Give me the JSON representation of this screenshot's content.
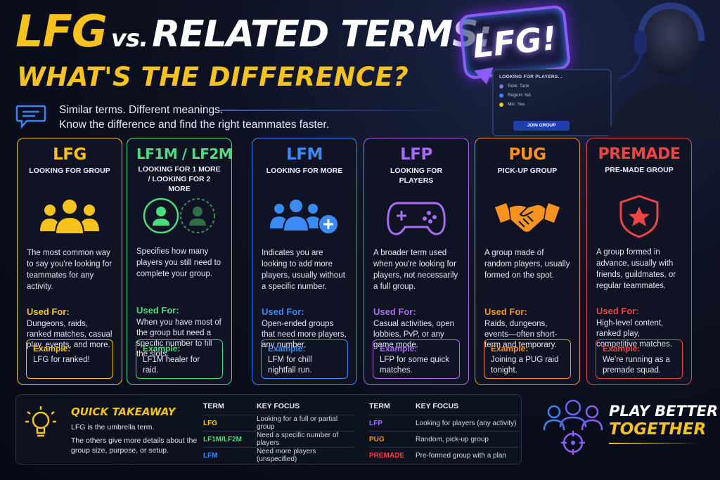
{
  "header": {
    "title_lfg": "LFG",
    "title_vs": "vs.",
    "title_rest": "RELATED TERMS:",
    "title_line2": "WHAT'S THE DIFFERENCE?",
    "subtitle_1": "Similar terms. Different meanings.",
    "subtitle_2": "Know the difference and find the right teammates faster."
  },
  "hero": {
    "bubble_text": "LFG!",
    "screen_title": "LOOKING FOR PLAYERS...",
    "screen_rows": [
      "Role: Tank",
      "Region: NA",
      "Mic: Yes"
    ],
    "screen_button": "JOIN GROUP"
  },
  "cards": [
    {
      "term": "LFG",
      "subtitle": "LOOKING FOR GROUP",
      "icon": "group-icon",
      "color": "#f6c21c",
      "description": "The most common way to say you're looking for teammates for any activity.",
      "used_for_label": "Used For:",
      "used_for": "Dungeons, raids, ranked matches, casual play, events, and more.",
      "example_label": "Example:",
      "example": "LFG for ranked!"
    },
    {
      "term": "LF1M / LF2M",
      "subtitle": "LOOKING FOR 1 MORE / LOOKING FOR 2 MORE",
      "icon": "user-slots-icon",
      "color": "#4ade80",
      "description": "Specifies how many players you still need to complete your group.",
      "used_for_label": "Used For:",
      "used_for": "When you have most of the group but need a specific number to fill the slots.",
      "example_label": "Example:",
      "example": "LF1M healer for raid."
    },
    {
      "term": "LFM",
      "subtitle": "LOOKING FOR MORE",
      "icon": "add-users-icon",
      "color": "#3b8bf6",
      "description": "Indicates you are looking to add more players, usually without a specific number.",
      "used_for_label": "Used For:",
      "used_for": "Open-ended groups that need more players, any number.",
      "example_label": "Example:",
      "example": "LFM for chill nightfall run."
    },
    {
      "term": "LFP",
      "subtitle": "LOOKING FOR PLAYERS",
      "icon": "gamepad-icon",
      "color": "#a66cf4",
      "description": "A broader term used when you're looking for players, not necessarily a full group.",
      "used_for_label": "Used For:",
      "used_for": "Casual activities, open lobbies, PvP, or any game mode.",
      "example_label": "Example:",
      "example": "LFP for some quick matches."
    },
    {
      "term": "PUG",
      "subtitle": "PICK-UP GROUP",
      "icon": "handshake-icon",
      "color": "#f7931e",
      "description": "A group made of random players, usually formed on the spot.",
      "used_for_label": "Used For:",
      "used_for": "Raids, dungeons, events—often short-term and temporary.",
      "example_label": "Example:",
      "example": "Joining a PUG raid tonight."
    },
    {
      "term": "PREMADE",
      "subtitle": "PRE-MADE GROUP",
      "icon": "shield-star-icon",
      "color": "#ef4444",
      "description": "A group formed in advance, usually with friends, guildmates, or regular teammates.",
      "used_for_label": "Used For:",
      "used_for": "High-level content, ranked play, competitive matches.",
      "example_label": "Example:",
      "example": "We're running as a premade squad."
    }
  ],
  "takeaway": {
    "heading": "QUICK TAKEAWAY",
    "line_1": "LFG is the umbrella term.",
    "line_2": "The others give more details about the group size, purpose, or setup.",
    "col_term": "TERM",
    "col_focus": "KEY FOCUS",
    "table_left": [
      {
        "term": "LFG",
        "focus": "Looking for a full or partial group",
        "color": "#f6c21c"
      },
      {
        "term": "LF1M/LF2M",
        "focus": "Need a specific number of players",
        "color": "#4ade80"
      },
      {
        "term": "LFM",
        "focus": "Need more players (unspecified)",
        "color": "#3b8bf6"
      }
    ],
    "table_right": [
      {
        "term": "LFP",
        "focus": "Looking for players (any activity)",
        "color": "#a66cf4"
      },
      {
        "term": "PUG",
        "focus": "Random, pick-up group",
        "color": "#f7931e"
      },
      {
        "term": "PREMADE",
        "focus": "Pre-formed group with a plan",
        "color": "#ef4444"
      }
    ]
  },
  "slogan": {
    "line_1": "PLAY BETTER",
    "line_2": "TOGETHER"
  }
}
